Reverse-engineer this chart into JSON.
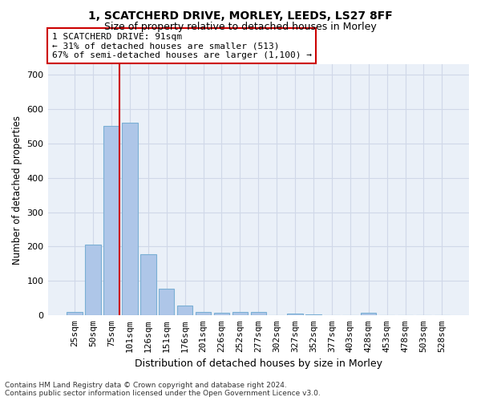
{
  "title1": "1, SCATCHERD DRIVE, MORLEY, LEEDS, LS27 8FF",
  "title2": "Size of property relative to detached houses in Morley",
  "xlabel": "Distribution of detached houses by size in Morley",
  "ylabel": "Number of detached properties",
  "categories": [
    "25sqm",
    "50sqm",
    "75sqm",
    "101sqm",
    "126sqm",
    "151sqm",
    "176sqm",
    "201sqm",
    "226sqm",
    "252sqm",
    "277sqm",
    "302sqm",
    "327sqm",
    "352sqm",
    "377sqm",
    "403sqm",
    "428sqm",
    "453sqm",
    "478sqm",
    "503sqm",
    "528sqm"
  ],
  "values": [
    10,
    205,
    550,
    560,
    178,
    78,
    28,
    10,
    7,
    10,
    10,
    0,
    5,
    3,
    0,
    0,
    7,
    0,
    0,
    0,
    0
  ],
  "bar_color": "#aec6e8",
  "bar_edge_color": "#7aafd4",
  "vline_color": "#cc0000",
  "annotation_text": "1 SCATCHERD DRIVE: 91sqm\n← 31% of detached houses are smaller (513)\n67% of semi-detached houses are larger (1,100) →",
  "annotation_box_color": "#ffffff",
  "annotation_edge_color": "#cc0000",
  "ylim": [
    0,
    730
  ],
  "yticks": [
    0,
    100,
    200,
    300,
    400,
    500,
    600,
    700
  ],
  "grid_color": "#d0d8e8",
  "bg_color": "#eaf0f8",
  "footnote": "Contains HM Land Registry data © Crown copyright and database right 2024.\nContains public sector information licensed under the Open Government Licence v3.0."
}
